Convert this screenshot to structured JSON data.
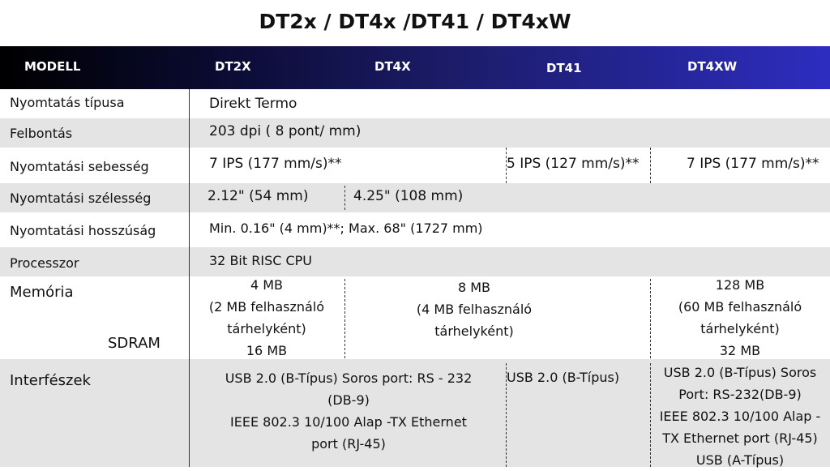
{
  "title": "DT2x / DT4x /DT41 / DT4xW",
  "header": {
    "col0": "MODELL",
    "col1": "DT2X",
    "col2": "DT4X",
    "col3": "DT41",
    "col4": "DT4XW"
  },
  "rows": {
    "print_type": {
      "label": "Nyomtatás típusa",
      "value": "Direkt Termo"
    },
    "resolution": {
      "label": "Felbontás",
      "value": "203 dpi ( 8 pont/ mm)"
    },
    "speed": {
      "label": "Nyomtatási sebesség",
      "dt2x_dt4x": "7 IPS (177 mm/s)**",
      "dt41": "5 IPS (127 mm/s)**",
      "dt4xw": "7 IPS (177 mm/s)**"
    },
    "width": {
      "label": "Nyomtatási szélesség",
      "dt2x": "2.12\" (54 mm)",
      "others": "4.25\" (108 mm)"
    },
    "length": {
      "label": "Nyomtatási hosszúság",
      "value": "Min. 0.16\" (4 mm)**; Max. 68\" (1727 mm)"
    },
    "processor": {
      "label": "Processzor",
      "value": "32 Bit RISC CPU"
    },
    "memory": {
      "label": "Memória",
      "sublabel": "SDRAM",
      "dt2x": [
        "4 MB",
        "(2 MB felhasználó",
        "tárhelyként)",
        "16 MB"
      ],
      "dt4x_dt41": [
        "8 MB",
        "(4 MB felhasználó",
        "tárhelyként)"
      ],
      "dt4xw": [
        "128 MB",
        "(60 MB felhasználó",
        "tárhelyként)",
        "32 MB"
      ]
    },
    "interfaces": {
      "label": "Interfészek",
      "dt2x_dt4x": [
        "USB 2.0 (B-Típus) Soros port: RS - 232",
        "(DB-9)",
        "IEEE 802.3 10/100 Alap -TX Ethernet",
        "port (RJ-45)"
      ],
      "dt41": "USB 2.0 (B-Típus)",
      "dt4xw": [
        "USB 2.0 (B-Típus) Soros",
        "Port: RS-232(DB-9)",
        "IEEE 802.3 10/100 Alap -",
        "TX Ethernet port (RJ-45)",
        "USB (A-Típus)"
      ]
    }
  }
}
